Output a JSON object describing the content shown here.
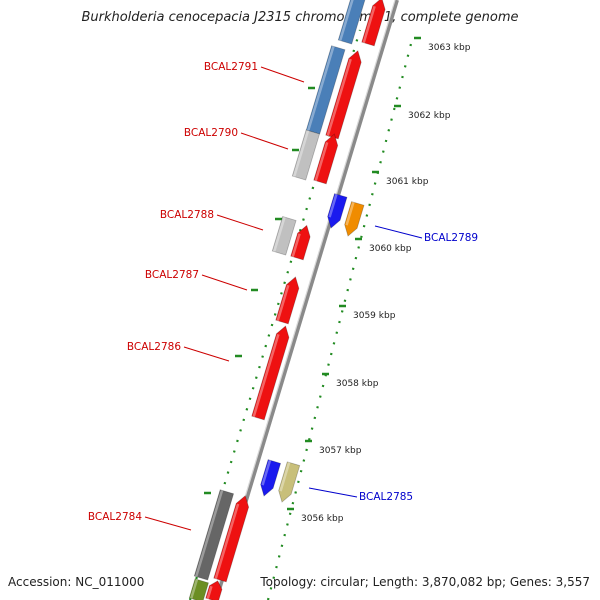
{
  "title": "Burkholderia cenocepacia J2315 chromosome 1, complete genome",
  "accession_text": "Accession: NC_011000",
  "summary_text": "Topology: circular; Length: 3,870,082 bp; Genes: 3,557",
  "ticks": [
    {
      "label": "3063 kbp",
      "pos": 3063
    },
    {
      "label": "3062 kbp",
      "pos": 3062
    },
    {
      "label": "3061 kbp",
      "pos": 3061
    },
    {
      "label": "3060 kbp",
      "pos": 3060
    },
    {
      "label": "3059 kbp",
      "pos": 3059
    },
    {
      "label": "3058 kbp",
      "pos": 3058
    },
    {
      "label": "3057 kbp",
      "pos": 3057
    },
    {
      "label": "3056 kbp",
      "pos": 3056
    }
  ],
  "colors": {
    "cds": "#ee1111",
    "label_left": "#cc0000",
    "label_right": "#0000cc",
    "backbone": "#8a8a8a",
    "dots": "#228b22"
  },
  "genes": [
    {
      "label": "BCAL2791",
      "side": "left",
      "color": "#4a7fb8"
    },
    {
      "label": "BCAL2790",
      "side": "left",
      "color": "#c0c0c0"
    },
    {
      "label": "BCAL2788",
      "side": "left",
      "color": "#c0c0c0"
    },
    {
      "label": "BCAL2787",
      "side": "left",
      "color": "#ee1111"
    },
    {
      "label": "BCAL2786",
      "side": "left",
      "color": "#ee1111"
    },
    {
      "label": "BCAL2784",
      "side": "left",
      "color": "#666666"
    },
    {
      "label": "BCAL2789",
      "side": "right",
      "color": "#f08c00"
    },
    {
      "label": "BCAL2785",
      "side": "right",
      "color": "#c8bf7a"
    }
  ]
}
